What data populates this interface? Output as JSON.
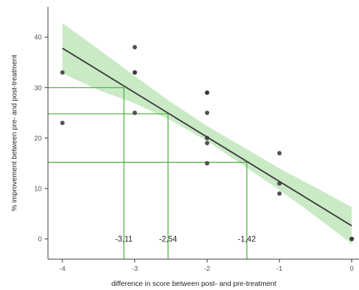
{
  "chart_data": {
    "type": "scatter",
    "xlabel": "difference in score between post- and pre-treatment",
    "ylabel": "% improvement between pre- and post-treatment",
    "xlim": [
      -4.2,
      0.1
    ],
    "ylim": [
      -4,
      46
    ],
    "x_ticks": [
      -4,
      -3,
      -2,
      -1,
      0
    ],
    "y_ticks": [
      0,
      10,
      20,
      30,
      40
    ],
    "x_tick_labels": [
      "-4",
      "-3",
      "-2",
      "-1",
      "0"
    ],
    "y_tick_labels": [
      "0",
      "10",
      "20",
      "30",
      "40"
    ],
    "grid": false,
    "points": [
      {
        "x": -4,
        "y": 33
      },
      {
        "x": -4,
        "y": 23
      },
      {
        "x": -3,
        "y": 38
      },
      {
        "x": -3,
        "y": 33
      },
      {
        "x": -3,
        "y": 33
      },
      {
        "x": -3,
        "y": 25
      },
      {
        "x": -2,
        "y": 29
      },
      {
        "x": -2,
        "y": 29
      },
      {
        "x": -2,
        "y": 25
      },
      {
        "x": -2,
        "y": 20
      },
      {
        "x": -2,
        "y": 19
      },
      {
        "x": -2,
        "y": 15
      },
      {
        "x": -1,
        "y": 17
      },
      {
        "x": -1,
        "y": 11
      },
      {
        "x": -1,
        "y": 9
      },
      {
        "x": 0,
        "y": 0
      },
      {
        "x": 0,
        "y": 0
      }
    ],
    "regression_line": {
      "x": [
        -4,
        0
      ],
      "y": [
        37.8,
        2.6
      ]
    },
    "confidence_band": {
      "x": [
        -4,
        -3.5,
        -3,
        -2.5,
        -2,
        -1.5,
        -1,
        -0.5,
        0
      ],
      "lower": [
        32.8,
        29.5,
        26.9,
        23.5,
        19.4,
        14.6,
        9.7,
        4.5,
        -1.0
      ],
      "upper": [
        42.8,
        37.6,
        32.3,
        27.1,
        22.4,
        18.2,
        14.0,
        10.2,
        6.3
      ]
    },
    "annotations": [
      {
        "label": "-3,11",
        "x": -3.15,
        "y": 30
      },
      {
        "label": "-2,54",
        "x": -2.54,
        "y": 24.8
      },
      {
        "label": "-1,42",
        "x": -1.45,
        "y": 15.2
      }
    ],
    "colors": {
      "points": "#3a3a3a",
      "line": "#3d3d3d",
      "band": "#b8e3b3",
      "annotation_lines": "#4caf3e",
      "axis": "#333333"
    }
  }
}
